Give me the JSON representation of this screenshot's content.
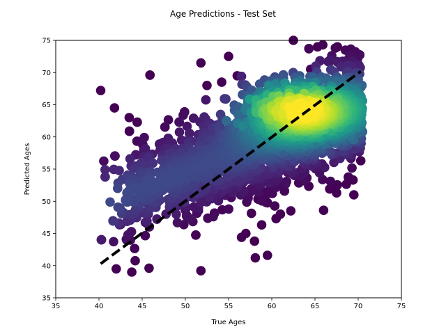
{
  "chart_data": {
    "type": "scatter",
    "title": "Age Predictions - Test Set",
    "xlabel": "True Ages",
    "ylabel": "Predicted Ages",
    "xlim": [
      35,
      75
    ],
    "ylim": [
      35,
      75
    ],
    "xticks": [
      "35",
      "40",
      "45",
      "50",
      "55",
      "60",
      "65",
      "70",
      "75"
    ],
    "yticks": [
      "35",
      "40",
      "45",
      "50",
      "55",
      "60",
      "65",
      "70",
      "75"
    ],
    "grid": false,
    "legend": "none",
    "colormap": "viridis",
    "color_encodes": "point density",
    "reference_line": {
      "style": "dashed",
      "color": "#000000",
      "from": [
        40.2,
        40.3
      ],
      "to": [
        70.3,
        70.2
      ]
    },
    "trend": {
      "x_range": [
        40,
        70.5
      ],
      "fit_intercept": 29.5,
      "fit_slope": 0.5,
      "density_peak": [
        63.5,
        64.2
      ]
    },
    "outliers": [
      [
        40.2,
        67.2
      ],
      [
        41.8,
        64.5
      ],
      [
        43.5,
        63.0
      ],
      [
        42.0,
        39.5
      ],
      [
        43.8,
        39.0
      ],
      [
        45.8,
        39.6
      ],
      [
        51.8,
        71.5
      ],
      [
        51.8,
        39.2
      ],
      [
        55.0,
        72.5
      ],
      [
        56.0,
        69.5
      ],
      [
        54.2,
        68.5
      ],
      [
        52.5,
        68.0
      ],
      [
        57.0,
        45.0
      ],
      [
        58.0,
        43.8
      ],
      [
        59.5,
        41.6
      ],
      [
        58.1,
        41.2
      ],
      [
        56.5,
        44.4
      ],
      [
        62.2,
        48.5
      ],
      [
        62.5,
        75.0
      ],
      [
        65.3,
        74.0
      ],
      [
        65.9,
        74.3
      ],
      [
        67.6,
        74.0
      ],
      [
        64.5,
        70.5
      ],
      [
        66.0,
        48.6
      ],
      [
        67.5,
        51.3
      ],
      [
        69.5,
        51.0
      ],
      [
        70.3,
        56.3
      ],
      [
        69.4,
        53.3
      ],
      [
        61.0,
        48.0
      ],
      [
        60.5,
        47.3
      ]
    ]
  }
}
